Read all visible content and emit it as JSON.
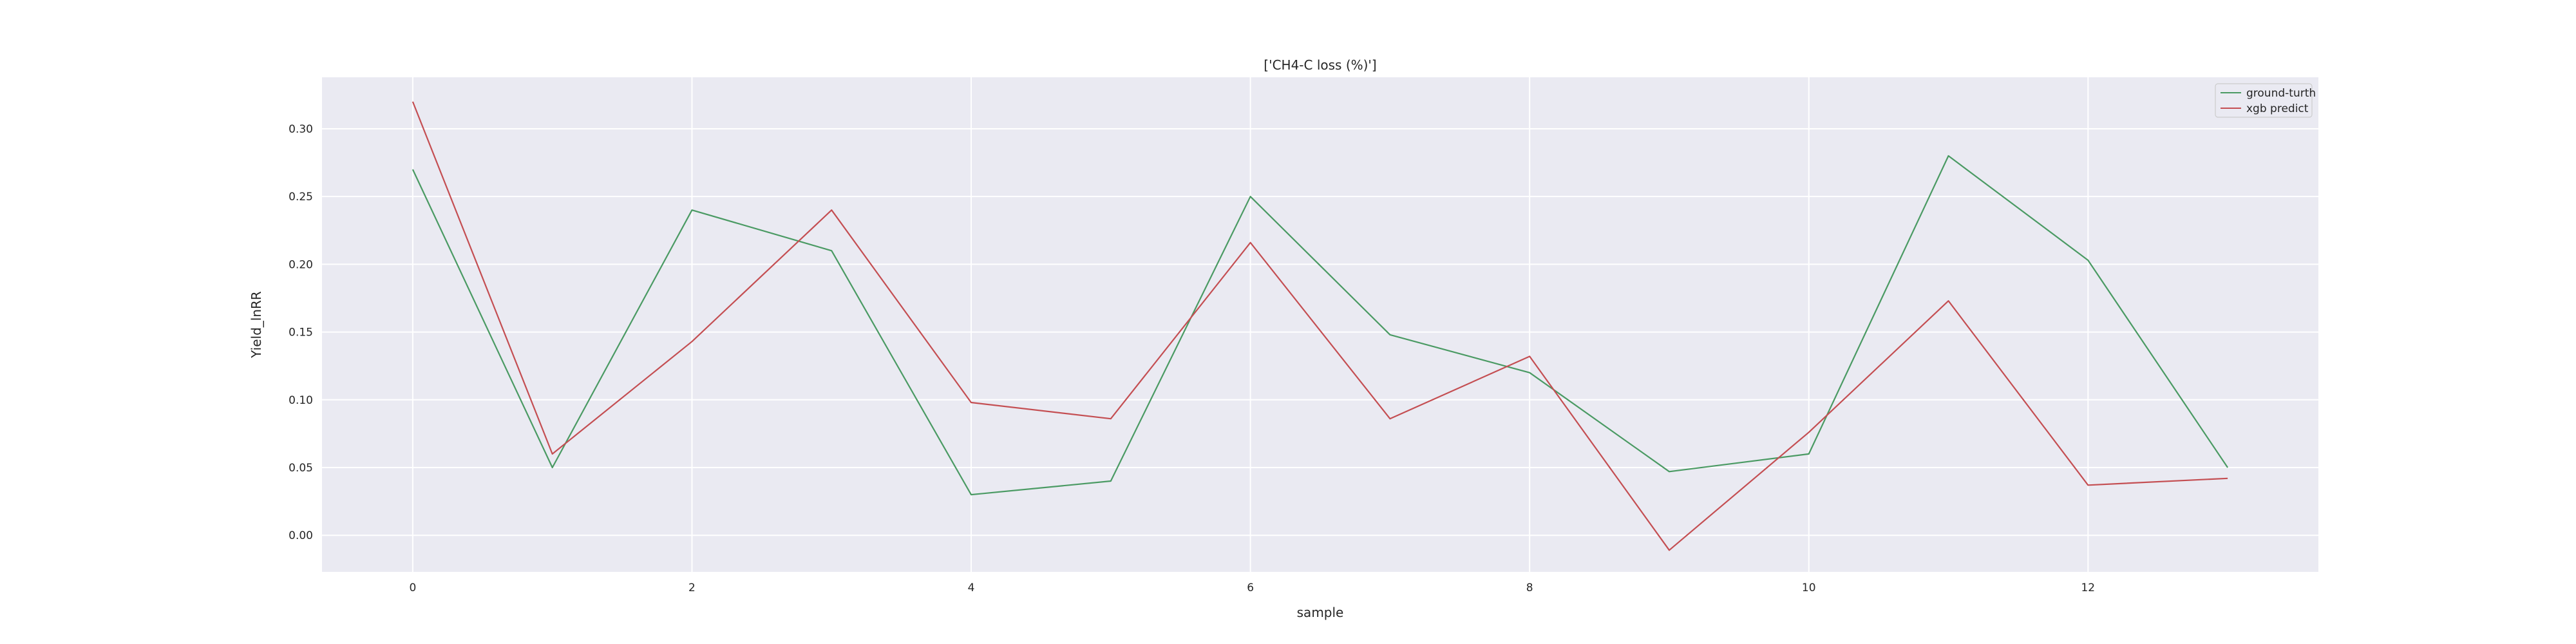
{
  "chart_data": {
    "type": "line",
    "title": "['CH4-C loss (%)']",
    "xlabel": "sample",
    "ylabel": "Yield_lnRR",
    "xlim": [
      -0.65,
      13.65
    ],
    "ylim": [
      -0.027,
      0.338
    ],
    "xticks": [
      0,
      2,
      4,
      6,
      8,
      10,
      12
    ],
    "yticks": [
      0.0,
      0.05,
      0.1,
      0.15,
      0.2,
      0.25,
      0.3
    ],
    "ytick_labels": [
      "0.00",
      "0.05",
      "0.10",
      "0.15",
      "0.20",
      "0.25",
      "0.30"
    ],
    "grid": true,
    "legend_position": "top-right",
    "x": [
      0,
      1,
      2,
      3,
      4,
      5,
      6,
      7,
      8,
      9,
      10,
      11,
      12,
      13
    ],
    "series": [
      {
        "name": "ground-turth",
        "color": "#4a9a63",
        "values": [
          0.27,
          0.05,
          0.24,
          0.21,
          0.03,
          0.04,
          0.25,
          0.148,
          0.12,
          0.047,
          0.06,
          0.28,
          0.203,
          0.05
        ]
      },
      {
        "name": "xgb predict",
        "color": "#c44e52",
        "values": [
          0.32,
          0.06,
          0.143,
          0.24,
          0.098,
          0.086,
          0.216,
          0.086,
          0.132,
          -0.011,
          0.076,
          0.173,
          0.037,
          0.042
        ]
      }
    ]
  }
}
